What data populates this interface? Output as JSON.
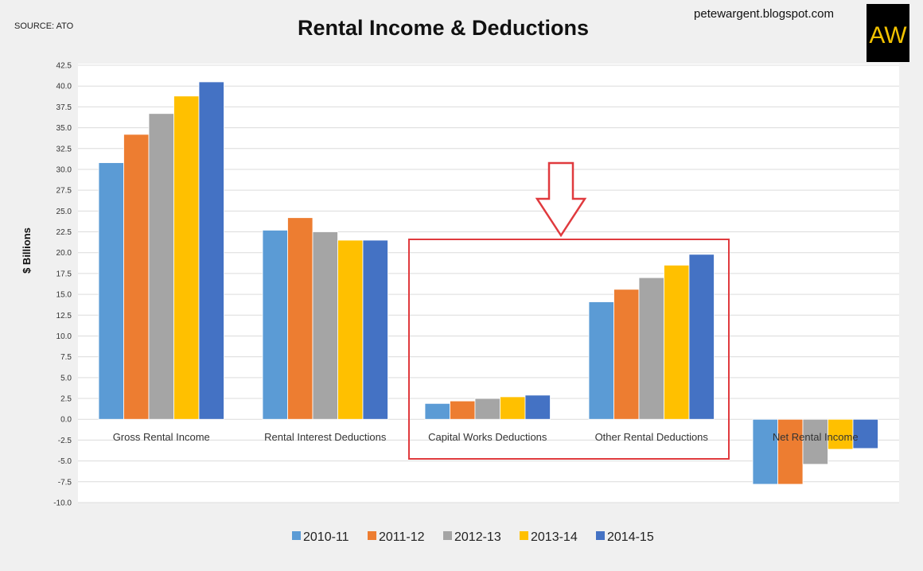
{
  "header": {
    "source": "SOURCE: ATO",
    "blog": "petewargent.blogspot.com",
    "logo_text": "AW"
  },
  "chart_data": {
    "type": "bar",
    "title": "Rental Income & Deductions",
    "xlabel": "",
    "ylabel": "$ Billions",
    "ylim": [
      -10,
      42.5
    ],
    "ytick_step": 2.5,
    "grid": true,
    "legend_position": "bottom",
    "categories": [
      "Gross Rental Income",
      "Rental Interest Deductions",
      "Capital Works Deductions",
      "Other Rental Deductions",
      "Net Rental Income"
    ],
    "series": [
      {
        "name": "2010-11",
        "color": "#5b9bd5",
        "values": [
          30.8,
          22.7,
          1.9,
          14.1,
          -7.8
        ]
      },
      {
        "name": "2011-12",
        "color": "#ed7d31",
        "values": [
          34.2,
          24.2,
          2.2,
          15.6,
          -7.8
        ]
      },
      {
        "name": "2012-13",
        "color": "#a5a5a5",
        "values": [
          36.7,
          22.5,
          2.5,
          17.0,
          -5.4
        ]
      },
      {
        "name": "2013-14",
        "color": "#ffc000",
        "values": [
          38.8,
          21.5,
          2.7,
          18.5,
          -3.6
        ]
      },
      {
        "name": "2014-15",
        "color": "#4472c4",
        "values": [
          40.5,
          21.5,
          2.9,
          19.8,
          -3.5
        ]
      }
    ],
    "highlight": {
      "categories": [
        "Capital Works Deductions",
        "Other Rental Deductions"
      ],
      "color": "#e03a3e"
    }
  }
}
